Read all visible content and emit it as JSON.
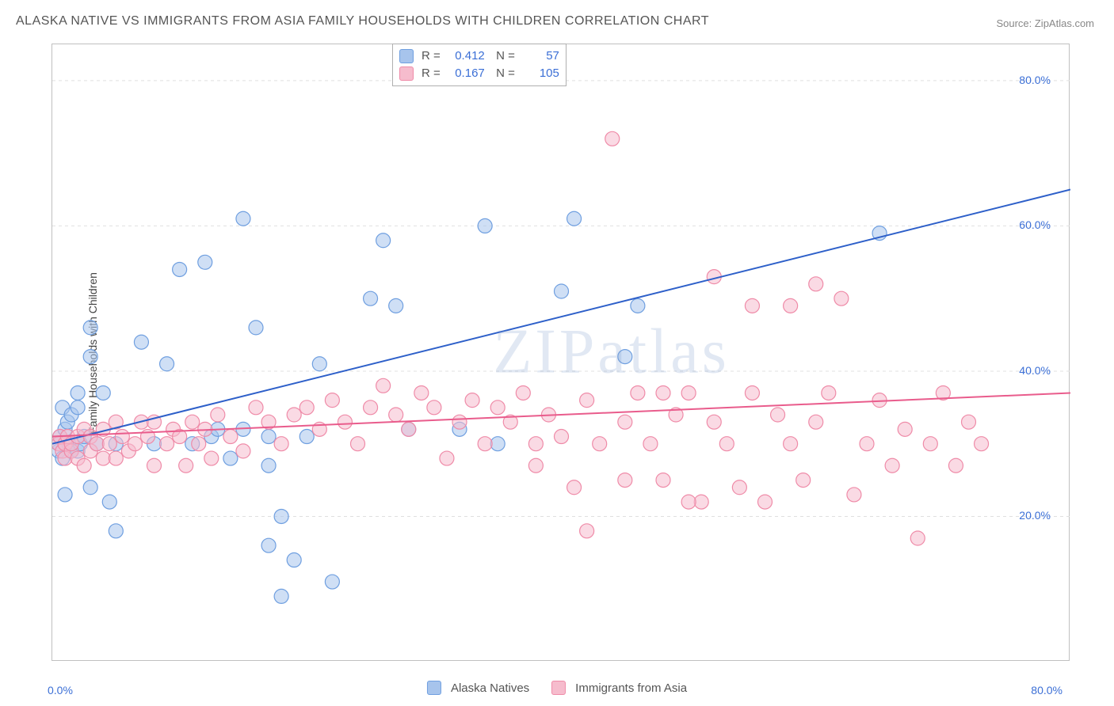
{
  "title": "ALASKA NATIVE VS IMMIGRANTS FROM ASIA FAMILY HOUSEHOLDS WITH CHILDREN CORRELATION CHART",
  "source": "Source: ZipAtlas.com",
  "y_axis_label": "Family Households with Children",
  "watermark": "ZIPatlas",
  "chart": {
    "type": "scatter",
    "background_color": "#ffffff",
    "border_color": "#c0c0c0",
    "grid_color": "#e0e0e0",
    "grid_dash": "4,4",
    "xlim": [
      0,
      80
    ],
    "ylim": [
      0,
      85
    ],
    "x_ticks": [
      {
        "v": 0,
        "label": "0.0%"
      },
      {
        "v": 80,
        "label": "80.0%"
      }
    ],
    "y_ticks": [
      {
        "v": 20,
        "label": "20.0%"
      },
      {
        "v": 40,
        "label": "40.0%"
      },
      {
        "v": 60,
        "label": "60.0%"
      },
      {
        "v": 80,
        "label": "80.0%"
      }
    ],
    "tick_color": "#3b6fd6",
    "tick_fontsize": 14,
    "marker_radius": 9,
    "marker_opacity": 0.55,
    "line_width": 2
  },
  "series": [
    {
      "name": "Alaska Natives",
      "color_fill": "#a7c4ec",
      "color_stroke": "#6f9fe0",
      "line_color": "#2d5fc9",
      "r": "0.412",
      "n": "57",
      "trend": {
        "x1": 0,
        "y1": 30,
        "x2": 80,
        "y2": 65
      },
      "points": [
        [
          0.5,
          29
        ],
        [
          0.5,
          30
        ],
        [
          0.6,
          31
        ],
        [
          0.8,
          28
        ],
        [
          0.8,
          35
        ],
        [
          1,
          32
        ],
        [
          1,
          23
        ],
        [
          1.2,
          33
        ],
        [
          1.3,
          30
        ],
        [
          1.5,
          29
        ],
        [
          1.5,
          34
        ],
        [
          2,
          37
        ],
        [
          2,
          35
        ],
        [
          2,
          29
        ],
        [
          2.2,
          30
        ],
        [
          2.5,
          31
        ],
        [
          3,
          24
        ],
        [
          3,
          42
        ],
        [
          3,
          46
        ],
        [
          3.5,
          30
        ],
        [
          4,
          37
        ],
        [
          4.5,
          22
        ],
        [
          5,
          18
        ],
        [
          5,
          30
        ],
        [
          7,
          44
        ],
        [
          8,
          30
        ],
        [
          9,
          41
        ],
        [
          10,
          54
        ],
        [
          11,
          30
        ],
        [
          12,
          55
        ],
        [
          12.5,
          31
        ],
        [
          13,
          32
        ],
        [
          14,
          28
        ],
        [
          15,
          61
        ],
        [
          16,
          46
        ],
        [
          17,
          27
        ],
        [
          17,
          31
        ],
        [
          17,
          16
        ],
        [
          18,
          20
        ],
        [
          18,
          9
        ],
        [
          19,
          14
        ],
        [
          20,
          31
        ],
        [
          21,
          41
        ],
        [
          22,
          11
        ],
        [
          25,
          50
        ],
        [
          26,
          58
        ],
        [
          27,
          49
        ],
        [
          28,
          32
        ],
        [
          32,
          32
        ],
        [
          34,
          60
        ],
        [
          35,
          30
        ],
        [
          40,
          51
        ],
        [
          41,
          61
        ],
        [
          45,
          42
        ],
        [
          46,
          49
        ],
        [
          65,
          59
        ],
        [
          15,
          32
        ]
      ]
    },
    {
      "name": "Immigrants from Asia",
      "color_fill": "#f6bccd",
      "color_stroke": "#ef8ba8",
      "line_color": "#e95c8c",
      "r": "0.167",
      "n": "105",
      "trend": {
        "x1": 0,
        "y1": 31,
        "x2": 80,
        "y2": 37
      },
      "points": [
        [
          0.5,
          30
        ],
        [
          0.6,
          31
        ],
        [
          0.8,
          29
        ],
        [
          1,
          30
        ],
        [
          1,
          28
        ],
        [
          1.2,
          31
        ],
        [
          1.5,
          29
        ],
        [
          1.5,
          30
        ],
        [
          2,
          28
        ],
        [
          2,
          31
        ],
        [
          2.5,
          27
        ],
        [
          2.5,
          32
        ],
        [
          3,
          29
        ],
        [
          3,
          31
        ],
        [
          3.5,
          30
        ],
        [
          4,
          28
        ],
        [
          4,
          32
        ],
        [
          4.5,
          30
        ],
        [
          5,
          33
        ],
        [
          5,
          28
        ],
        [
          5.5,
          31
        ],
        [
          6,
          29
        ],
        [
          6.5,
          30
        ],
        [
          7,
          33
        ],
        [
          7.5,
          31
        ],
        [
          8,
          27
        ],
        [
          8,
          33
        ],
        [
          9,
          30
        ],
        [
          9.5,
          32
        ],
        [
          10,
          31
        ],
        [
          10.5,
          27
        ],
        [
          11,
          33
        ],
        [
          11.5,
          30
        ],
        [
          12,
          32
        ],
        [
          12.5,
          28
        ],
        [
          13,
          34
        ],
        [
          14,
          31
        ],
        [
          15,
          29
        ],
        [
          16,
          35
        ],
        [
          17,
          33
        ],
        [
          18,
          30
        ],
        [
          19,
          34
        ],
        [
          20,
          35
        ],
        [
          21,
          32
        ],
        [
          22,
          36
        ],
        [
          23,
          33
        ],
        [
          24,
          30
        ],
        [
          25,
          35
        ],
        [
          26,
          38
        ],
        [
          27,
          34
        ],
        [
          28,
          32
        ],
        [
          29,
          37
        ],
        [
          30,
          35
        ],
        [
          31,
          28
        ],
        [
          32,
          33
        ],
        [
          33,
          36
        ],
        [
          34,
          30
        ],
        [
          35,
          35
        ],
        [
          36,
          33
        ],
        [
          37,
          37
        ],
        [
          38,
          27
        ],
        [
          39,
          34
        ],
        [
          40,
          31
        ],
        [
          41,
          24
        ],
        [
          42,
          36
        ],
        [
          43,
          30
        ],
        [
          44,
          72
        ],
        [
          45,
          33
        ],
        [
          46,
          37
        ],
        [
          47,
          30
        ],
        [
          48,
          25
        ],
        [
          49,
          34
        ],
        [
          50,
          37
        ],
        [
          51,
          22
        ],
        [
          52,
          33
        ],
        [
          52,
          53
        ],
        [
          53,
          30
        ],
        [
          54,
          24
        ],
        [
          55,
          37
        ],
        [
          56,
          22
        ],
        [
          57,
          34
        ],
        [
          58,
          30
        ],
        [
          58,
          49
        ],
        [
          59,
          25
        ],
        [
          60,
          33
        ],
        [
          61,
          37
        ],
        [
          62,
          50
        ],
        [
          63,
          23
        ],
        [
          64,
          30
        ],
        [
          65,
          36
        ],
        [
          66,
          27
        ],
        [
          67,
          32
        ],
        [
          68,
          17
        ],
        [
          69,
          30
        ],
        [
          70,
          37
        ],
        [
          71,
          27
        ],
        [
          72,
          33
        ],
        [
          73,
          30
        ],
        [
          60,
          52
        ],
        [
          55,
          49
        ],
        [
          50,
          22
        ],
        [
          48,
          37
        ],
        [
          45,
          25
        ],
        [
          42,
          18
        ],
        [
          38,
          30
        ]
      ]
    }
  ],
  "legend_bottom": [
    {
      "swatch": "#a7c4ec",
      "stroke": "#6f9fe0",
      "label": "Alaska Natives"
    },
    {
      "swatch": "#f6bccd",
      "stroke": "#ef8ba8",
      "label": "Immigrants from Asia"
    }
  ]
}
